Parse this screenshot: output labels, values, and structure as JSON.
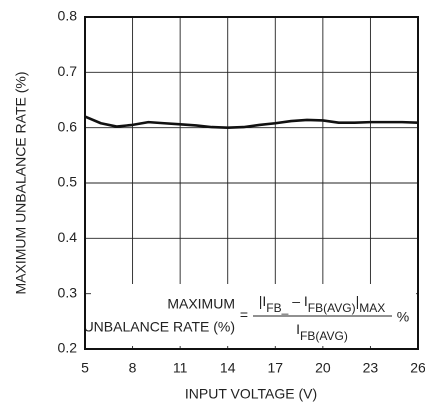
{
  "chart_data": {
    "type": "line",
    "x_label": "INPUT VOLTAGE (V)",
    "y_label": "MAXIMUM UNBALANCE RATE (%)",
    "x": [
      5,
      6,
      7,
      8,
      9,
      10,
      11,
      12,
      13,
      14,
      15,
      16,
      17,
      18,
      19,
      20,
      21,
      22,
      23,
      24,
      25,
      26
    ],
    "series": [
      {
        "name": null,
        "color": "#111111",
        "values": [
          0.62,
          0.608,
          0.602,
          0.605,
          0.61,
          0.608,
          0.606,
          0.604,
          0.601,
          0.6,
          0.601,
          0.605,
          0.608,
          0.612,
          0.614,
          0.613,
          0.609,
          0.609,
          0.61,
          0.61,
          0.61,
          0.609
        ]
      }
    ],
    "xlim": [
      5,
      26
    ],
    "xticks": [
      5,
      8,
      11,
      14,
      17,
      20,
      23,
      26
    ],
    "ylim": [
      0.2,
      0.8
    ],
    "yticks": [
      0.2,
      0.3,
      0.4,
      0.5,
      0.6,
      0.7,
      0.8
    ],
    "grid": true,
    "annotation": {
      "label_lines": [
        "MAXIMUM",
        "UNBALANCE RATE (%)"
      ],
      "equals": "=",
      "numerator": [
        {
          "text": "|I",
          "sub": false
        },
        {
          "text": "FB_",
          "sub": true
        },
        {
          "text": " – I",
          "sub": false
        },
        {
          "text": "FB(AVG)",
          "sub": true
        },
        {
          "text": "|",
          "sub": false
        },
        {
          "text": "MAX",
          "sub": true
        }
      ],
      "denominator": [
        {
          "text": "I",
          "sub": false
        },
        {
          "text": "FB(AVG)",
          "sub": true
        }
      ],
      "unit": "%"
    }
  }
}
